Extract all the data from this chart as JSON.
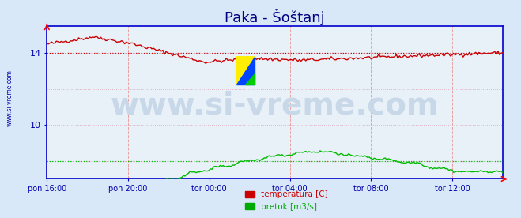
{
  "title": "Paka - Šoštanj",
  "title_color": "#000080",
  "title_fontsize": 13,
  "bg_color": "#d8e8f8",
  "plot_bg_color": "#e8f0f8",
  "border_color": "#0000cc",
  "xlabel_color": "#0000aa",
  "watermark": "www.si-vreme.com",
  "watermark_color": "#c8d8e8",
  "watermark_fontsize": 28,
  "xtick_labels": [
    "pon 16:00",
    "pon 20:00",
    "tor 00:00",
    "tor 04:00",
    "tor 08:00",
    "tor 12:00"
  ],
  "xtick_positions": [
    0.0,
    0.178,
    0.356,
    0.533,
    0.711,
    0.889
  ],
  "ymin": 7.0,
  "ymax": 15.5,
  "legend_entries": [
    "temperatura [C]",
    "pretok [m3/s]"
  ],
  "legend_colors": [
    "#cc0000",
    "#00aa00"
  ],
  "sidewatermark": "www.si-vreme.com",
  "sidewatermark_color": "#0000aa",
  "temp_color": "#cc0000",
  "flow_color": "#00bb00",
  "avg_temp_color": "#cc0000",
  "avg_flow_color": "#00bb00",
  "avg_temp_value": 14.0,
  "avg_flow_value": 8.0,
  "n_points": 288,
  "grid_v_color": "#e8a0a0",
  "grid_h_color": "#e0b0c0"
}
